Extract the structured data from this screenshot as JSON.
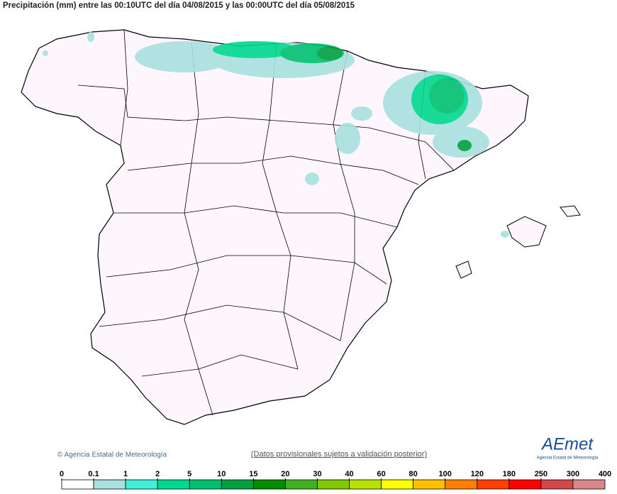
{
  "title": "Precipitación (mm) entre las 00:10UTC del día 04/08/2015 y las 00:00UTC del día 05/08/2015",
  "copyright": "© Agencia Estatal de Meteorología",
  "disclaimer": "(Datos provisionales sujetos a validación posterior)",
  "logo": {
    "name": "AEmet",
    "subtitle": "Agencia Estatal de Meteorología"
  },
  "legend": {
    "labels": [
      0,
      0.1,
      1,
      2,
      5,
      10,
      15,
      20,
      30,
      40,
      60,
      80,
      100,
      120,
      180,
      250,
      300,
      400
    ],
    "colors": [
      "#ffffff",
      "#a8e0e0",
      "#40f0d8",
      "#00d890",
      "#00c070",
      "#00a040",
      "#008c00",
      "#40b020",
      "#80c800",
      "#b8e000",
      "#ffff00",
      "#ffc000",
      "#ff8000",
      "#ff4000",
      "#ff0000",
      "#d04848",
      "#d88888",
      "#f4c8c8"
    ]
  }
}
